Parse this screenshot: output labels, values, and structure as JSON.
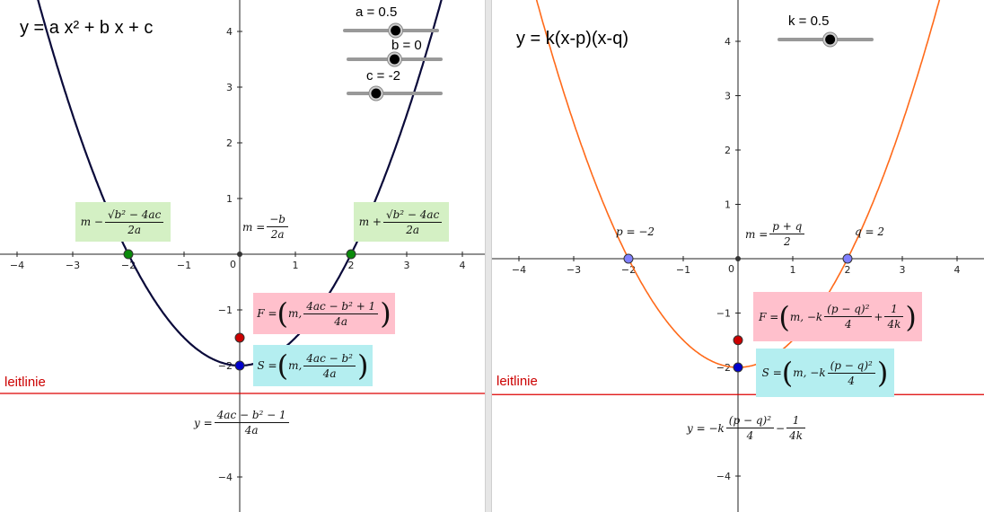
{
  "colors": {
    "left_curve": "#0a0a3a",
    "right_curve": "#ff6a1a",
    "directrix": "#dd0000",
    "focus": "#cc0000",
    "vertex": "#0000cc",
    "root_left": "#0a8a0a",
    "root_right": "#8080ff",
    "green_box": "#d4f0c4",
    "pink_box": "#ffc0cc",
    "cyan_box": "#b4eef0"
  },
  "left_panel": {
    "title": "y = a x² + b x + c",
    "sliders": [
      {
        "label": "a = 0.5",
        "value": 0.5,
        "min": -5,
        "max": 5
      },
      {
        "label": "b = 0",
        "value": 0,
        "min": -5,
        "max": 5
      },
      {
        "label": "c = -2",
        "value": -2,
        "min": -5,
        "max": 5
      }
    ],
    "directrix_label": "leitlinie",
    "formulas": {
      "m_left": {
        "pre": "m −",
        "num": "√b² − 4ac",
        "den": "2a"
      },
      "m_right": {
        "pre": "m +",
        "num": "√b² − 4ac",
        "den": "2a"
      },
      "m_eq": {
        "pre": "m =",
        "num": "−b",
        "den": "2a"
      },
      "focus": {
        "pre": "F =",
        "m": "m,",
        "num": "4ac − b² + 1",
        "den": "4a"
      },
      "vertex": {
        "pre": "S =",
        "m": "m,",
        "num": "4ac − b²",
        "den": "4a"
      },
      "directrix": {
        "pre": "y =",
        "num": "4ac − b² − 1",
        "den": "4a"
      }
    }
  },
  "right_panel": {
    "title": "y = k(x-p)(x-q)",
    "sliders": [
      {
        "label": "k = 0.5",
        "value": 0.5,
        "min": -5,
        "max": 5
      }
    ],
    "directrix_label": "leitlinie",
    "formulas": {
      "p_eq": "p = −2",
      "q_eq": "q = 2",
      "m_eq": {
        "pre": "m =",
        "num": "p + q",
        "den": "2"
      },
      "focus": {
        "pre": "F =",
        "m": "m, −k",
        "num": "(p − q)²",
        "den": "4",
        "plus": "+",
        "num2": "1",
        "den2": "4k"
      },
      "vertex": {
        "pre": "S =",
        "m": "m, −k",
        "num": "(p − q)²",
        "den": "4"
      },
      "directrix": {
        "pre": "y = −k",
        "num": "(p − q)²",
        "den": "4",
        "minus": "−",
        "num2": "1",
        "den2": "4k"
      }
    }
  },
  "chart_data": [
    {
      "type": "line",
      "title": "y = a x² + b x + c",
      "series": [
        {
          "a": 0.5,
          "b": 0,
          "c": -2
        }
      ],
      "xlim": [
        -4.2,
        4.2
      ],
      "ylim": [
        -4.5,
        4.5
      ],
      "x_ticks": [
        -4,
        -3,
        -2,
        -1,
        0,
        1,
        2,
        3,
        4
      ],
      "y_ticks": [
        -4,
        -2,
        -1,
        1,
        2,
        3,
        4
      ],
      "points": {
        "roots": [
          [
            -2,
            0
          ],
          [
            2,
            0
          ]
        ],
        "vertex": [
          0,
          -2
        ],
        "focus": [
          0,
          -1.5
        ],
        "origin": [
          0,
          0
        ]
      },
      "directrix_y": -2.5
    },
    {
      "type": "line",
      "title": "y = k(x-p)(x-q)",
      "series": [
        {
          "k": 0.5,
          "p": -2,
          "q": 2
        }
      ],
      "xlim": [
        -4.2,
        4.2
      ],
      "ylim": [
        -4.5,
        4.5
      ],
      "x_ticks": [
        -4,
        -3,
        -2,
        -1,
        0,
        1,
        2,
        3,
        4
      ],
      "y_ticks": [
        -4,
        -2,
        -1,
        1,
        2,
        3,
        4
      ],
      "points": {
        "roots": [
          [
            -2,
            0
          ],
          [
            2,
            0
          ]
        ],
        "vertex": [
          0,
          -2
        ],
        "focus": [
          0,
          -1.5
        ],
        "origin": [
          0,
          0
        ]
      },
      "directrix_y": -2.5
    }
  ]
}
